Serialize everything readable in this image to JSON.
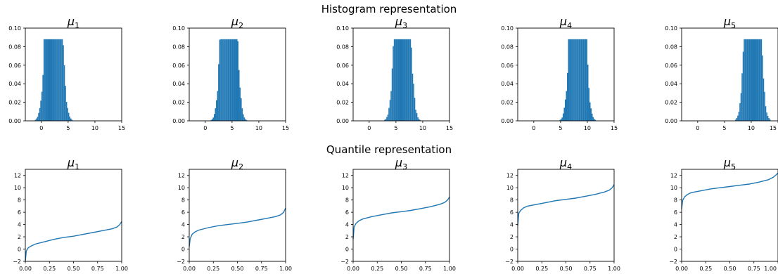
{
  "figure": {
    "hist_title": "Histogram representation",
    "quant_title": "Quantile representation",
    "bar_color": "#1f77b4",
    "line_color": "#1f77b4"
  },
  "chart_data": [
    {
      "type": "bar",
      "title": "μ1",
      "measure": "Normal",
      "mean": 2.3,
      "sd": 1.0,
      "xlim": [
        -3,
        15
      ],
      "ylim": [
        0,
        0.1
      ],
      "xticks": [
        "0",
        "5",
        "10",
        "15"
      ],
      "yticks": [
        "0.00",
        "0.02",
        "0.04",
        "0.06",
        "0.08",
        "0.10"
      ]
    },
    {
      "type": "bar",
      "title": "μ2",
      "measure": "Normal",
      "mean": 4.4,
      "sd": 0.95,
      "xlim": [
        -3,
        15
      ],
      "ylim": [
        0,
        0.1
      ],
      "xticks": [
        "0",
        "5",
        "10",
        "15"
      ],
      "yticks": [
        "0.00",
        "0.02",
        "0.04",
        "0.06",
        "0.08",
        "0.10"
      ]
    },
    {
      "type": "bar",
      "title": "μ3",
      "measure": "Normal",
      "mean": 6.2,
      "sd": 0.95,
      "xlim": [
        -3,
        15
      ],
      "ylim": [
        0,
        0.1
      ],
      "xticks": [
        "0",
        "5",
        "10",
        "15"
      ],
      "yticks": [
        "0.00",
        "0.02",
        "0.04",
        "0.06",
        "0.08",
        "0.10"
      ]
    },
    {
      "type": "bar",
      "title": "μ4",
      "measure": "Normal",
      "mean": 8.2,
      "sd": 0.95,
      "xlim": [
        -3,
        15
      ],
      "ylim": [
        0,
        0.1
      ],
      "xticks": [
        "0",
        "5",
        "10",
        "15"
      ],
      "yticks": [
        "0.00",
        "0.02",
        "0.04",
        "0.06",
        "0.08",
        "0.10"
      ]
    },
    {
      "type": "bar",
      "title": "μ5",
      "measure": "Normal",
      "mean": 10.3,
      "sd": 0.95,
      "xlim": [
        -3,
        15
      ],
      "ylim": [
        0,
        0.1
      ],
      "xticks": [
        "0",
        "5",
        "10",
        "15"
      ],
      "yticks": [
        "0.00",
        "0.02",
        "0.04",
        "0.06",
        "0.08",
        "0.10"
      ]
    },
    {
      "type": "line",
      "title": "μ1",
      "xlim": [
        0,
        1
      ],
      "ylim": [
        -2,
        13
      ],
      "xticks": [
        "0.00",
        "0.25",
        "0.50",
        "0.75",
        "1.00"
      ],
      "yticks": [
        "−2",
        "0",
        "2",
        "4",
        "6",
        "8",
        "10",
        "12"
      ],
      "x": [
        0.0,
        0.01,
        0.03,
        0.06,
        0.1,
        0.2,
        0.3,
        0.4,
        0.5,
        0.6,
        0.7,
        0.8,
        0.9,
        0.95,
        0.98,
        1.0
      ],
      "y": [
        -2.0,
        -0.3,
        0.2,
        0.5,
        0.8,
        1.2,
        1.6,
        1.9,
        2.1,
        2.4,
        2.7,
        3.0,
        3.3,
        3.6,
        4.0,
        4.5
      ]
    },
    {
      "type": "line",
      "title": "μ2",
      "xlim": [
        0,
        1
      ],
      "ylim": [
        -2,
        13
      ],
      "xticks": [
        "0.00",
        "0.25",
        "0.50",
        "0.75",
        "1.00"
      ],
      "yticks": [
        "−2",
        "0",
        "2",
        "4",
        "6",
        "8",
        "10",
        "12"
      ],
      "x": [
        0.0,
        0.01,
        0.03,
        0.06,
        0.1,
        0.2,
        0.3,
        0.4,
        0.5,
        0.6,
        0.7,
        0.8,
        0.9,
        0.95,
        0.98,
        1.0
      ],
      "y": [
        0.4,
        1.7,
        2.4,
        2.8,
        3.1,
        3.5,
        3.8,
        4.0,
        4.2,
        4.4,
        4.7,
        5.0,
        5.3,
        5.6,
        6.0,
        6.7
      ]
    },
    {
      "type": "line",
      "title": "μ3",
      "xlim": [
        0,
        1
      ],
      "ylim": [
        -2,
        13
      ],
      "xticks": [
        "0.00",
        "0.25",
        "0.50",
        "0.75",
        "1.00"
      ],
      "yticks": [
        "−2",
        "0",
        "2",
        "4",
        "6",
        "8",
        "10",
        "12"
      ],
      "x": [
        0.0,
        0.01,
        0.03,
        0.06,
        0.1,
        0.2,
        0.3,
        0.4,
        0.5,
        0.6,
        0.7,
        0.8,
        0.9,
        0.95,
        0.98,
        1.0
      ],
      "y": [
        1.6,
        3.6,
        4.2,
        4.6,
        4.9,
        5.3,
        5.6,
        5.9,
        6.1,
        6.3,
        6.6,
        6.9,
        7.3,
        7.6,
        8.0,
        8.5
      ]
    },
    {
      "type": "line",
      "title": "μ4",
      "xlim": [
        0,
        1
      ],
      "ylim": [
        -2,
        13
      ],
      "xticks": [
        "0.00",
        "0.25",
        "0.50",
        "0.75",
        "1.00"
      ],
      "yticks": [
        "−2",
        "0",
        "2",
        "4",
        "6",
        "8",
        "10",
        "12"
      ],
      "x": [
        0.0,
        0.01,
        0.03,
        0.06,
        0.1,
        0.2,
        0.3,
        0.4,
        0.5,
        0.6,
        0.7,
        0.8,
        0.9,
        0.95,
        0.98,
        1.0
      ],
      "y": [
        3.8,
        5.8,
        6.3,
        6.7,
        7.0,
        7.3,
        7.6,
        7.9,
        8.1,
        8.3,
        8.6,
        8.9,
        9.3,
        9.6,
        10.0,
        10.5
      ]
    },
    {
      "type": "line",
      "title": "μ5",
      "xlim": [
        0,
        1
      ],
      "ylim": [
        -2,
        13
      ],
      "xticks": [
        "0.00",
        "0.25",
        "0.50",
        "0.75",
        "1.00"
      ],
      "yticks": [
        "−2",
        "0",
        "2",
        "4",
        "6",
        "8",
        "10",
        "12"
      ],
      "x": [
        0.0,
        0.01,
        0.03,
        0.06,
        0.1,
        0.2,
        0.3,
        0.4,
        0.5,
        0.6,
        0.7,
        0.8,
        0.9,
        0.95,
        0.98,
        1.0
      ],
      "y": [
        6.5,
        7.9,
        8.5,
        8.9,
        9.2,
        9.5,
        9.8,
        10.0,
        10.2,
        10.4,
        10.6,
        10.9,
        11.3,
        11.7,
        12.1,
        12.4
      ]
    }
  ]
}
